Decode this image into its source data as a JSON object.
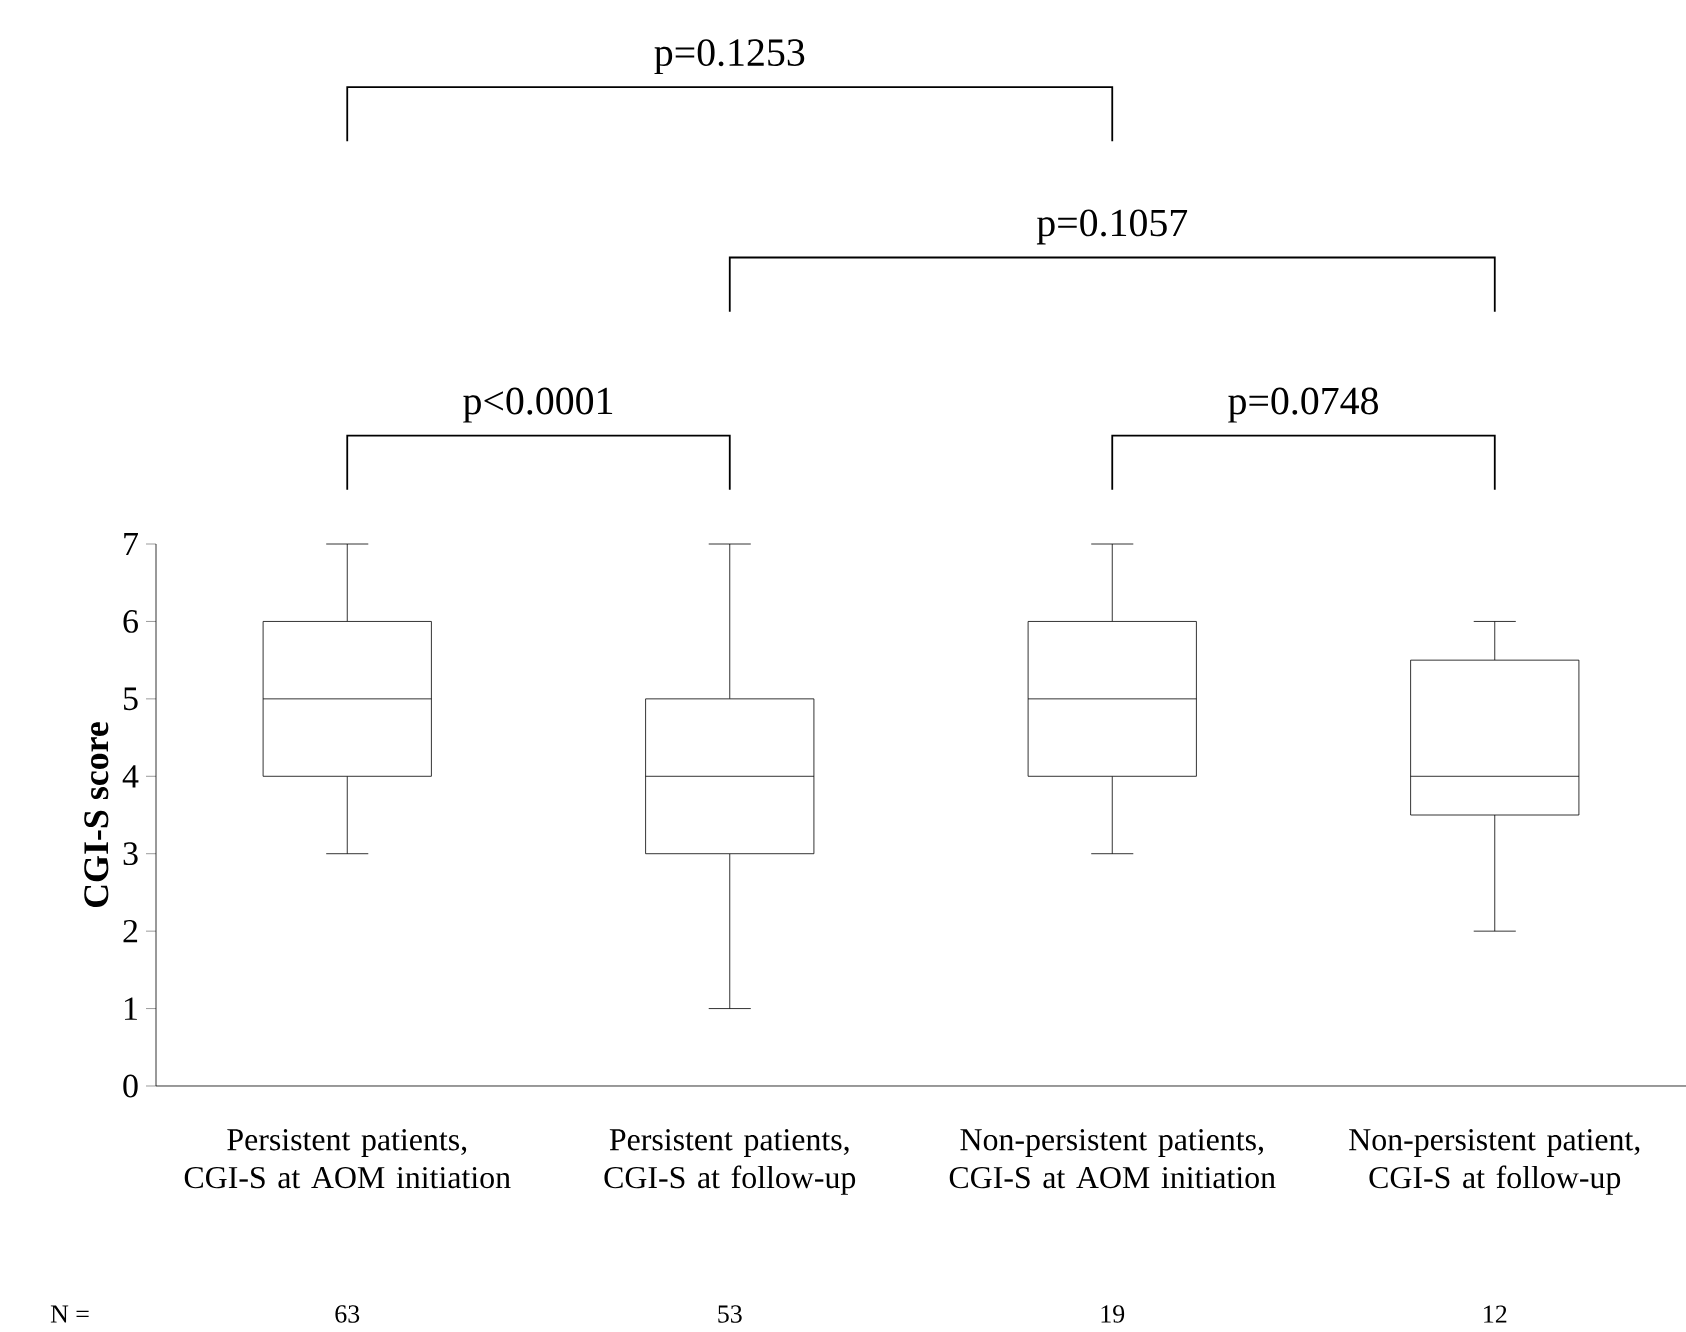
{
  "chart_data": {
    "type": "box",
    "ylabel": "CGI-S score",
    "categories": [
      "Persistent patients, CGI-S at AOM initiation",
      "Persistent patients, CGI-S at follow-up",
      "Non-persistent patients, CGI-S at AOM initiation",
      "Non-persistent patient, CGI-S at follow-up"
    ],
    "boxes": [
      {
        "low": 3,
        "q1": 4,
        "median": 5,
        "q3": 6,
        "high": 7
      },
      {
        "low": 1,
        "q1": 3,
        "median": 4,
        "q3": 5,
        "high": 7
      },
      {
        "low": 3,
        "q1": 4,
        "median": 5,
        "q3": 6,
        "high": 7
      },
      {
        "low": 2,
        "q1": 3.5,
        "median": 4,
        "q3": 5.5,
        "high": 6
      }
    ],
    "ylim": [
      0,
      7
    ],
    "yticks": [
      0,
      1,
      2,
      3,
      4,
      5,
      6,
      7
    ],
    "annotations": [
      "p=0.1253",
      "p=0.1057",
      "p<0.0001",
      "p=0.0748",
      "N =",
      "63",
      "53",
      "19",
      "12"
    ]
  }
}
